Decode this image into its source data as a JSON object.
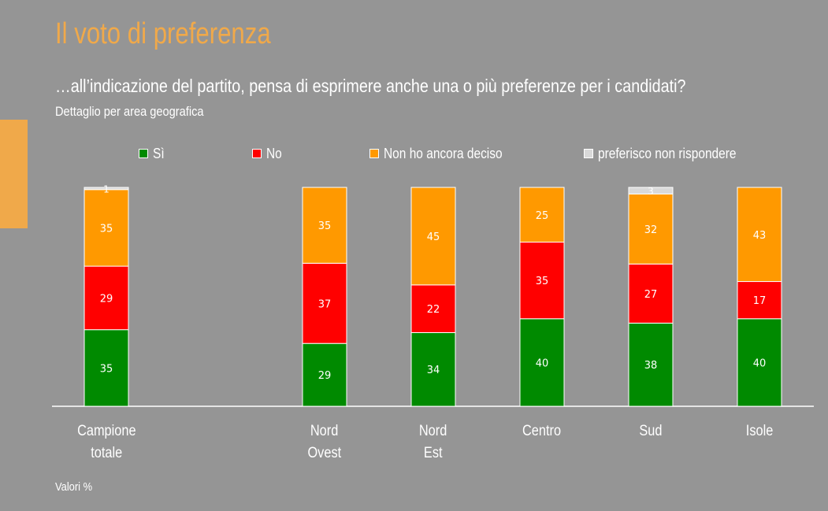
{
  "header": {
    "title": "Il voto di preferenza",
    "subtitle": "…all’indicazione del partito, pensa di esprimere anche una o più preferenze per i candidati?",
    "detail": "Dettaglio per area geografica"
  },
  "footnote": "Valori %",
  "colors": {
    "background": "#959595",
    "accent": "#F0A94A",
    "si": "#008A00",
    "no": "#FF0000",
    "non_deciso": "#FF9900",
    "non_rispondere": "#D9D9D9"
  },
  "chart_data": {
    "type": "bar",
    "stacked": true,
    "categories": [
      {
        "lines": [
          "Campione",
          "totale"
        ]
      },
      {
        "lines": [
          "Nord",
          "Ovest"
        ]
      },
      {
        "lines": [
          "Nord",
          "Est"
        ]
      },
      {
        "lines": [
          "Centro"
        ]
      },
      {
        "lines": [
          "Sud"
        ]
      },
      {
        "lines": [
          "Isole"
        ]
      }
    ],
    "series": [
      {
        "name": "Sì",
        "color": "#008A00",
        "values": [
          35,
          29,
          34,
          40,
          38,
          40
        ]
      },
      {
        "name": "No",
        "color": "#FF0000",
        "values": [
          29,
          37,
          22,
          35,
          27,
          17
        ]
      },
      {
        "name": "Non ho ancora deciso",
        "color": "#FF9900",
        "values": [
          35,
          35,
          45,
          25,
          32,
          43
        ]
      },
      {
        "name": "preferisco non rispondere",
        "color": "#D9D9D9",
        "values": [
          1,
          0,
          0,
          0,
          3,
          0
        ]
      }
    ],
    "ylim": [
      0,
      100
    ],
    "legend_position": "top",
    "grid": false
  }
}
